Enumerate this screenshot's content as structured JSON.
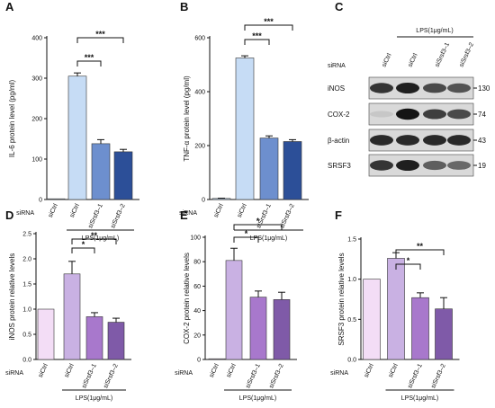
{
  "figure": {
    "siRNA_label": "siRNA",
    "lps_label": "LPS(1μg/mL)"
  },
  "chart_data": [
    {
      "panel": "A",
      "type": "bar",
      "ylabel": "IL-6 protein level (pg/ml)",
      "ylim": [
        0,
        400
      ],
      "yticks": [
        0,
        100,
        200,
        300,
        400
      ],
      "categories": [
        "siCtrl",
        "siCtrl",
        "siSrsf3–1",
        "siSrsf3–2"
      ],
      "values": [
        0,
        305,
        138,
        118
      ],
      "errors": [
        0,
        8,
        10,
        6
      ],
      "colors": [
        "#c6dcf5",
        "#c6dcf5",
        "#6d8fce",
        "#2c4f98"
      ],
      "lps_group": [
        1,
        3
      ],
      "significance": [
        {
          "from": 1,
          "to": 2,
          "label": "***"
        },
        {
          "from": 1,
          "to": 3,
          "label": "***"
        }
      ]
    },
    {
      "panel": "B",
      "type": "bar",
      "ylabel": "TNF-α protein level (pg/ml)",
      "ylim": [
        0,
        600
      ],
      "yticks": [
        0,
        200,
        400,
        600
      ],
      "categories": [
        "siCtrl",
        "siCtrl",
        "siSrsf3–1",
        "siSrsf3–2"
      ],
      "values": [
        4,
        525,
        228,
        215
      ],
      "errors": [
        1,
        8,
        8,
        7
      ],
      "colors": [
        "#c6dcf5",
        "#c6dcf5",
        "#6d8fce",
        "#2c4f98"
      ],
      "lps_group": [
        1,
        3
      ],
      "significance": [
        {
          "from": 1,
          "to": 2,
          "label": "***"
        },
        {
          "from": 1,
          "to": 3,
          "label": "***"
        }
      ]
    },
    {
      "panel": "D",
      "type": "bar",
      "ylabel": "iNOS protein relative levels",
      "ylim": [
        0,
        2.5
      ],
      "yticks": [
        "0.0",
        "0.5",
        "1.0",
        "1.5",
        "2.0",
        "2.5"
      ],
      "categories": [
        "siCtrl",
        "siCtrl",
        "siSrsf3–1",
        "siSrsf3–2"
      ],
      "values": [
        1.0,
        1.7,
        0.85,
        0.74
      ],
      "errors": [
        0,
        0.25,
        0.08,
        0.08
      ],
      "colors": [
        "#f3ddf6",
        "#c9b1e3",
        "#a878cc",
        "#7f5aa8"
      ],
      "lps_group": [
        1,
        3
      ],
      "significance": [
        {
          "from": 1,
          "to": 2,
          "label": "*"
        },
        {
          "from": 1,
          "to": 3,
          "label": "**"
        }
      ]
    },
    {
      "panel": "E",
      "type": "bar",
      "ylabel": "COX-2 protein relative levels",
      "ylim": [
        0,
        100
      ],
      "yticks": [
        0,
        20,
        40,
        60,
        80,
        100
      ],
      "categories": [
        "siCtrl",
        "siCtrl",
        "siSrsf3–1",
        "siSrsf3–2"
      ],
      "values": [
        0.5,
        81,
        51,
        49
      ],
      "errors": [
        0,
        10,
        5,
        6
      ],
      "colors": [
        "#f3ddf6",
        "#c9b1e3",
        "#a878cc",
        "#7f5aa8"
      ],
      "lps_group": [
        1,
        3
      ],
      "significance": [
        {
          "from": 1,
          "to": 2,
          "label": "*"
        },
        {
          "from": 1,
          "to": 3,
          "label": "*"
        }
      ]
    },
    {
      "panel": "F",
      "type": "bar",
      "ylabel": "SRSF3 protein relative levels",
      "ylim": [
        0,
        1.5
      ],
      "yticks": [
        "0.0",
        "0.5",
        "1.0",
        "1.5"
      ],
      "categories": [
        "siCtrl",
        "siCtrl",
        "siSrsf3–1",
        "siSrsf3–2"
      ],
      "values": [
        1.0,
        1.26,
        0.77,
        0.63
      ],
      "errors": [
        0,
        0.07,
        0.06,
        0.14
      ],
      "colors": [
        "#f3ddf6",
        "#c9b1e3",
        "#a878cc",
        "#7f5aa8"
      ],
      "lps_group": [
        1,
        3
      ],
      "significance": [
        {
          "from": 1,
          "to": 2,
          "label": "*"
        },
        {
          "from": 1,
          "to": 3,
          "label": "**"
        }
      ]
    }
  ],
  "western_blot": {
    "panel": "C",
    "lanes": [
      "siCtrl",
      "siCtrl",
      "siSrsf3–1",
      "siSrsf3–2"
    ],
    "lps_lanes": [
      1,
      3
    ],
    "rows": [
      {
        "name": "iNOS",
        "mw": "130",
        "intensity": [
          0.85,
          0.95,
          0.75,
          0.7
        ]
      },
      {
        "name": "COX-2",
        "mw": "74",
        "intensity": [
          0.15,
          1.0,
          0.8,
          0.75
        ]
      },
      {
        "name": "β-actin",
        "mw": "43",
        "intensity": [
          0.9,
          0.9,
          0.9,
          0.9
        ]
      },
      {
        "name": "SRSF3",
        "mw": "19",
        "intensity": [
          0.85,
          0.95,
          0.65,
          0.6
        ]
      }
    ]
  }
}
